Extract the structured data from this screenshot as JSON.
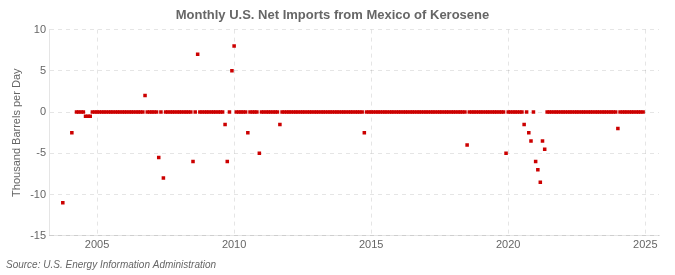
{
  "chart_data": {
    "type": "scatter",
    "title": "Monthly U.S. Net Imports from Mexico of Kerosene",
    "ylabel": "Thousand Barrels per Day",
    "annotations": [
      "Source: U.S. Energy Information Administration"
    ],
    "color": "#cc0000",
    "marker": "square",
    "grid": true,
    "xlim": [
      2003.25,
      2025.5
    ],
    "xticks": [
      2005,
      2010,
      2015,
      2020,
      2025
    ],
    "ylim": [
      -15,
      10
    ],
    "yticks": [
      -15,
      -10,
      -5,
      0,
      5,
      10
    ],
    "x": [
      2003.75,
      2004.08,
      2004.25,
      2004.33,
      2004.42,
      2004.5,
      2004.58,
      2004.67,
      2004.75,
      2004.83,
      2004.92,
      2005.0,
      2005.08,
      2005.17,
      2005.25,
      2005.33,
      2005.42,
      2005.5,
      2005.58,
      2005.67,
      2005.75,
      2005.83,
      2005.92,
      2006.0,
      2006.08,
      2006.17,
      2006.25,
      2006.33,
      2006.42,
      2006.5,
      2006.58,
      2006.67,
      2006.75,
      2006.83,
      2006.92,
      2007.0,
      2007.08,
      2007.17,
      2007.25,
      2007.33,
      2007.42,
      2007.5,
      2007.58,
      2007.67,
      2007.75,
      2007.83,
      2007.92,
      2008.0,
      2008.08,
      2008.17,
      2008.25,
      2008.33,
      2008.42,
      2008.5,
      2008.58,
      2008.67,
      2008.75,
      2008.83,
      2008.92,
      2009.0,
      2009.08,
      2009.17,
      2009.25,
      2009.33,
      2009.42,
      2009.5,
      2009.58,
      2009.67,
      2009.75,
      2009.83,
      2009.92,
      2010.0,
      2010.08,
      2010.17,
      2010.25,
      2010.33,
      2010.42,
      2010.5,
      2010.58,
      2010.67,
      2010.75,
      2010.83,
      2010.92,
      2011.0,
      2011.08,
      2011.17,
      2011.25,
      2011.33,
      2011.42,
      2011.5,
      2011.58,
      2011.67,
      2011.75,
      2011.83,
      2011.92,
      2012.0,
      2012.08,
      2012.17,
      2012.25,
      2012.33,
      2012.42,
      2012.5,
      2012.58,
      2012.67,
      2012.75,
      2012.83,
      2012.92,
      2013.0,
      2013.08,
      2013.17,
      2013.25,
      2013.33,
      2013.42,
      2013.5,
      2013.58,
      2013.67,
      2013.75,
      2013.83,
      2013.92,
      2014.0,
      2014.08,
      2014.17,
      2014.25,
      2014.33,
      2014.42,
      2014.5,
      2014.58,
      2014.67,
      2014.75,
      2014.83,
      2014.92,
      2015.0,
      2015.08,
      2015.17,
      2015.25,
      2015.33,
      2015.42,
      2015.5,
      2015.58,
      2015.67,
      2015.75,
      2015.83,
      2015.92,
      2016.0,
      2016.08,
      2016.17,
      2016.25,
      2016.33,
      2016.42,
      2016.5,
      2016.58,
      2016.67,
      2016.75,
      2016.83,
      2016.92,
      2017.0,
      2017.08,
      2017.17,
      2017.25,
      2017.33,
      2017.42,
      2017.5,
      2017.58,
      2017.67,
      2017.75,
      2017.83,
      2017.92,
      2018.0,
      2018.08,
      2018.17,
      2018.25,
      2018.33,
      2018.42,
      2018.5,
      2018.58,
      2018.67,
      2018.75,
      2018.83,
      2018.92,
      2019.0,
      2019.08,
      2019.17,
      2019.25,
      2019.33,
      2019.42,
      2019.5,
      2019.58,
      2019.67,
      2019.75,
      2019.83,
      2019.92,
      2020.0,
      2020.08,
      2020.17,
      2020.25,
      2020.33,
      2020.42,
      2020.5,
      2020.58,
      2020.67,
      2020.75,
      2020.83,
      2020.92,
      2021.0,
      2021.08,
      2021.17,
      2021.25,
      2021.33,
      2021.42,
      2021.5,
      2021.58,
      2021.67,
      2021.75,
      2021.83,
      2021.92,
      2022.0,
      2022.08,
      2022.17,
      2022.25,
      2022.33,
      2022.42,
      2022.5,
      2022.58,
      2022.67,
      2022.75,
      2022.83,
      2022.92,
      2023.0,
      2023.08,
      2023.17,
      2023.25,
      2023.33,
      2023.42,
      2023.5,
      2023.58,
      2023.67,
      2023.75,
      2023.83,
      2023.92,
      2024.0,
      2024.08,
      2024.17,
      2024.25,
      2024.33,
      2024.42,
      2024.5,
      2024.58,
      2024.67,
      2024.75,
      2024.83,
      2024.92
    ],
    "values": [
      -11,
      -2.5,
      0,
      0,
      0,
      0,
      -0.5,
      -0.5,
      -0.5,
      0,
      0,
      0,
      0,
      0,
      0,
      0,
      0,
      0,
      0,
      0,
      0,
      0,
      0,
      0,
      0,
      0,
      0,
      0,
      0,
      0,
      0,
      0,
      2,
      0,
      0,
      0,
      0,
      0,
      -5.5,
      0,
      -8,
      0,
      0,
      0,
      0,
      0,
      0,
      0,
      0,
      0,
      0,
      0,
      0,
      -6,
      0,
      7,
      0,
      0,
      0,
      0,
      0,
      0,
      0,
      0,
      0,
      0,
      0,
      -1.5,
      -6,
      0,
      5,
      8,
      0,
      0,
      0,
      0,
      0,
      -2.5,
      0,
      0,
      0,
      0,
      -5,
      0,
      0,
      0,
      0,
      0,
      0,
      0,
      0,
      -1.5,
      0,
      0,
      0,
      0,
      0,
      0,
      0,
      0,
      0,
      0,
      0,
      0,
      0,
      0,
      0,
      0,
      0,
      0,
      0,
      0,
      0,
      0,
      0,
      0,
      0,
      0,
      0,
      0,
      0,
      0,
      0,
      0,
      0,
      0,
      0,
      0,
      -2.5,
      0,
      0,
      0,
      0,
      0,
      0,
      0,
      0,
      0,
      0,
      0,
      0,
      0,
      0,
      0,
      0,
      0,
      0,
      0,
      0,
      0,
      0,
      0,
      0,
      0,
      0,
      0,
      0,
      0,
      0,
      0,
      0,
      0,
      0,
      0,
      0,
      0,
      0,
      0,
      0,
      0,
      0,
      0,
      0,
      -4,
      0,
      0,
      0,
      0,
      0,
      0,
      0,
      0,
      0,
      0,
      0,
      0,
      0,
      0,
      0,
      0,
      -5,
      0,
      0,
      0,
      0,
      0,
      0,
      0,
      -1.5,
      0,
      -2.5,
      -3.5,
      0,
      -6,
      -7,
      -8.5,
      -3.5,
      -4.5,
      0,
      0,
      0,
      0,
      0,
      0,
      0,
      0,
      0,
      0,
      0,
      0,
      0,
      0,
      0,
      0,
      0,
      0,
      0,
      0,
      0,
      0,
      0,
      0,
      0,
      0,
      0,
      0,
      0,
      0,
      0,
      -2,
      0,
      0,
      0,
      0,
      0,
      0,
      0,
      0,
      0,
      0,
      0
    ]
  }
}
